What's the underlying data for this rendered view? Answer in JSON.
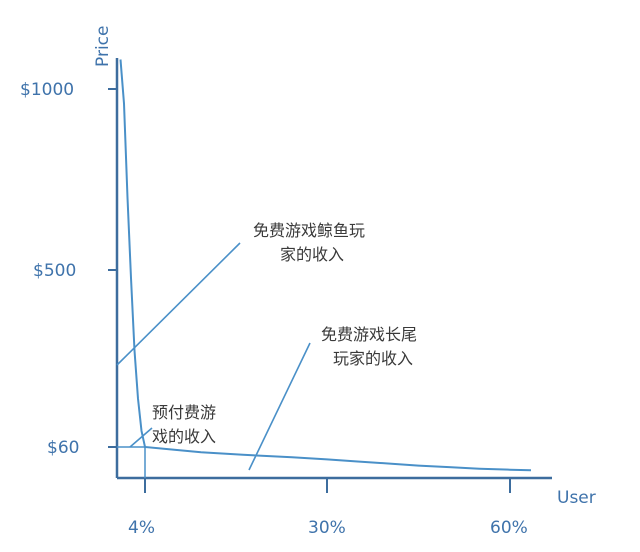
{
  "chart_data": {
    "type": "line",
    "title": "",
    "xlabel": "User",
    "ylabel": "Price",
    "x_ticks": [
      "4%",
      "30%",
      "60%"
    ],
    "y_ticks": [
      "$1000",
      "$500",
      "$60"
    ],
    "series": [
      {
        "x": [
          0.5,
          1,
          1.5,
          2,
          2.5,
          3,
          3.5,
          4,
          8,
          12,
          18,
          25,
          30,
          35,
          40,
          45,
          50,
          55,
          60,
          65
        ],
        "y": [
          1100,
          960,
          700,
          480,
          300,
          180,
          100,
          60,
          55,
          50,
          45,
          40,
          36,
          32,
          28,
          24,
          21,
          18,
          16,
          15
        ]
      }
    ],
    "annotations": [
      {
        "id": "whale",
        "lines": [
          "免费游戏鲸鱼玩",
          "家的收入"
        ],
        "target": [
          0.5,
          300
        ]
      },
      {
        "id": "longtail",
        "lines": [
          "免费游戏长尾",
          "玩家的收入"
        ],
        "target": [
          18,
          45
        ]
      },
      {
        "id": "prepaid",
        "lines": [
          "预付费游",
          "戏的收入"
        ],
        "target": [
          4,
          60
        ]
      }
    ],
    "style": {
      "line_color": "#4a90c8",
      "axis_color": "#3d6d9e",
      "label_color": "#3f73ab",
      "text_color": "#3a3a3a"
    },
    "ylim": [
      0,
      1200
    ],
    "xlim": [
      0,
      70
    ],
    "grid": false
  }
}
